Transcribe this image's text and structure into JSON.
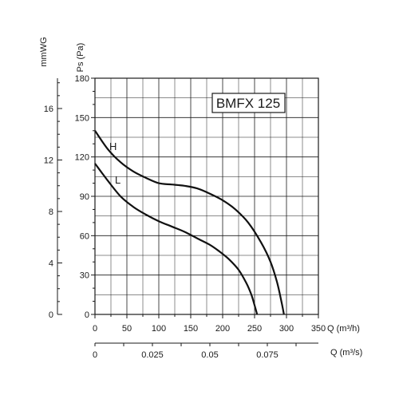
{
  "chart_data": {
    "type": "line",
    "title": "BMFX 125",
    "xlabel": "Q (m³/h)",
    "ylabel": "Ps (Pa)",
    "xlim": [
      0,
      350
    ],
    "ylim": [
      0,
      180
    ],
    "x_ticks": [
      "0",
      "50",
      "100",
      "150",
      "200",
      "250",
      "300",
      "350"
    ],
    "y_ticks": [
      "0",
      "30",
      "60",
      "90",
      "120",
      "150",
      "180"
    ],
    "grid": true,
    "secondary_y_axis": {
      "label": "mmWG",
      "ticks": [
        "0",
        "4",
        "8",
        "12",
        "16"
      ],
      "values": [
        0,
        4,
        8,
        12,
        16
      ],
      "pa_per_unit": 9.80665
    },
    "secondary_x_axis": {
      "label": "Q (m³/s)",
      "ticks": [
        "0",
        "0.025",
        "0.05",
        "0.075"
      ],
      "values": [
        0,
        0.025,
        0.05,
        0.075
      ],
      "m3h_per_unit": 3600
    },
    "series": [
      {
        "name": "H",
        "x": [
          0,
          20,
          40,
          60,
          80,
          100,
          120,
          140,
          160,
          180,
          200,
          220,
          240,
          260,
          275,
          285,
          292,
          296
        ],
        "y": [
          140,
          126,
          116,
          109,
          104,
          100,
          99,
          98,
          96,
          92,
          87,
          80,
          70,
          55,
          40,
          25,
          10,
          0
        ]
      },
      {
        "name": "L",
        "x": [
          0,
          20,
          40,
          60,
          80,
          100,
          120,
          140,
          160,
          180,
          195,
          210,
          225,
          237,
          245,
          250,
          254
        ],
        "y": [
          115,
          102,
          90,
          82,
          76,
          71,
          67,
          63,
          58,
          53,
          48,
          42,
          34,
          24,
          15,
          7,
          0
        ]
      }
    ]
  }
}
